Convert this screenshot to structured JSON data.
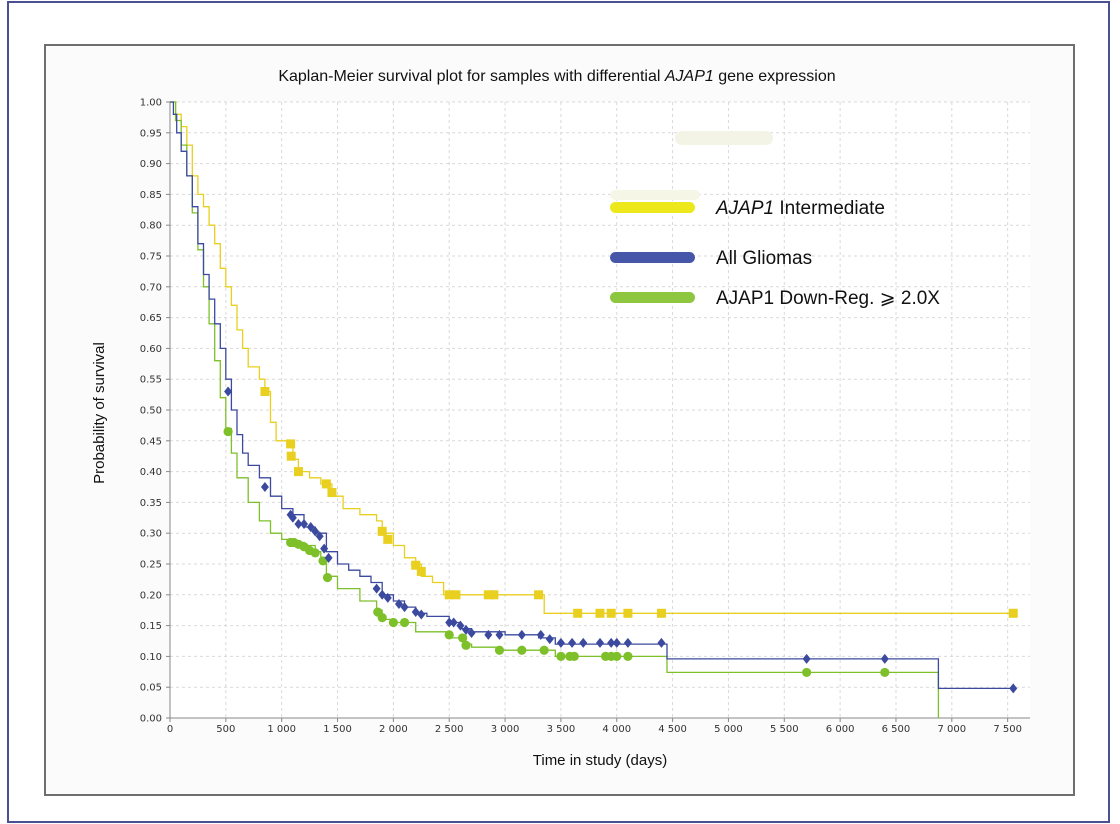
{
  "chart_data": {
    "type": "line",
    "title": {
      "prefix": "Kaplan-Meier survival plot for samples with differential ",
      "gene": "AJAP1",
      "suffix": " gene expression"
    },
    "xlabel": "Time in study (days)",
    "ylabel": "Probability of survival",
    "xlim": [
      0,
      7700
    ],
    "ylim": [
      0,
      1.0
    ],
    "x_ticks": [
      0,
      500,
      1000,
      1500,
      2000,
      2500,
      3000,
      3500,
      4000,
      4500,
      5000,
      5500,
      6000,
      6500,
      7000,
      7500
    ],
    "x_tick_labels": [
      "0",
      "500",
      "1 000",
      "1 500",
      "2 000",
      "2 500",
      "3 000",
      "3 500",
      "4 000",
      "4 500",
      "5 000",
      "5 500",
      "6 000",
      "6 500",
      "7 000",
      "7 500"
    ],
    "y_ticks": [
      0,
      0.05,
      0.1,
      0.15,
      0.2,
      0.25,
      0.3,
      0.35,
      0.4,
      0.45,
      0.5,
      0.55,
      0.6,
      0.65,
      0.7,
      0.75,
      0.8,
      0.85,
      0.9,
      0.95,
      1.0
    ],
    "y_tick_labels": [
      "0.00",
      "0.05",
      "0.10",
      "0.15",
      "0.20",
      "0.25",
      "0.30",
      "0.35",
      "0.40",
      "0.45",
      "0.50",
      "0.55",
      "0.60",
      "0.65",
      "0.70",
      "0.75",
      "0.80",
      "0.85",
      "0.90",
      "0.95",
      "1.00"
    ],
    "grid": true,
    "legend_position": "top-right",
    "series": [
      {
        "name": "AJAP1 Intermediate",
        "legend_label": {
          "italic": "AJAP1",
          "rest": " Intermediate"
        },
        "color": "#e9cf1f",
        "legend_color": "#ece81c",
        "marker": "square",
        "points": [
          [
            0,
            1.0
          ],
          [
            50,
            0.98
          ],
          [
            100,
            0.96
          ],
          [
            150,
            0.93
          ],
          [
            200,
            0.88
          ],
          [
            250,
            0.85
          ],
          [
            300,
            0.83
          ],
          [
            350,
            0.8
          ],
          [
            400,
            0.77
          ],
          [
            450,
            0.73
          ],
          [
            500,
            0.7
          ],
          [
            550,
            0.67
          ],
          [
            600,
            0.63
          ],
          [
            650,
            0.6
          ],
          [
            700,
            0.57
          ],
          [
            800,
            0.55
          ],
          [
            850,
            0.53
          ],
          [
            900,
            0.48
          ],
          [
            950,
            0.45
          ],
          [
            1050,
            0.44
          ],
          [
            1100,
            0.42
          ],
          [
            1150,
            0.4
          ],
          [
            1250,
            0.39
          ],
          [
            1350,
            0.38
          ],
          [
            1450,
            0.36
          ],
          [
            1550,
            0.34
          ],
          [
            1700,
            0.33
          ],
          [
            1850,
            0.32
          ],
          [
            1900,
            0.3
          ],
          [
            2000,
            0.28
          ],
          [
            2100,
            0.26
          ],
          [
            2200,
            0.25
          ],
          [
            2250,
            0.23
          ],
          [
            2350,
            0.22
          ],
          [
            2450,
            0.2
          ],
          [
            2650,
            0.2
          ],
          [
            3350,
            0.2
          ],
          [
            3350,
            0.17
          ],
          [
            7550,
            0.17
          ]
        ],
        "censored": [
          [
            850,
            0.53
          ],
          [
            1080,
            0.445
          ],
          [
            1085,
            0.425
          ],
          [
            1150,
            0.4
          ],
          [
            1400,
            0.38
          ],
          [
            1450,
            0.366
          ],
          [
            1900,
            0.303
          ],
          [
            1950,
            0.29
          ],
          [
            2200,
            0.248
          ],
          [
            2250,
            0.238
          ],
          [
            2500,
            0.2
          ],
          [
            2560,
            0.2
          ],
          [
            2850,
            0.2
          ],
          [
            2900,
            0.2
          ],
          [
            3300,
            0.2
          ],
          [
            3650,
            0.17
          ],
          [
            3850,
            0.17
          ],
          [
            3950,
            0.17
          ],
          [
            4100,
            0.17
          ],
          [
            4400,
            0.17
          ],
          [
            7550,
            0.17
          ]
        ]
      },
      {
        "name": "All Gliomas",
        "legend_label": {
          "italic": "",
          "rest": "All Gliomas"
        },
        "color": "#3b4a9e",
        "legend_color": "#4656a8",
        "marker": "diamond",
        "points": [
          [
            0,
            1.0
          ],
          [
            30,
            0.98
          ],
          [
            60,
            0.95
          ],
          [
            100,
            0.92
          ],
          [
            150,
            0.88
          ],
          [
            200,
            0.83
          ],
          [
            250,
            0.77
          ],
          [
            300,
            0.72
          ],
          [
            350,
            0.68
          ],
          [
            400,
            0.64
          ],
          [
            450,
            0.6
          ],
          [
            500,
            0.55
          ],
          [
            550,
            0.5
          ],
          [
            600,
            0.46
          ],
          [
            650,
            0.43
          ],
          [
            700,
            0.41
          ],
          [
            800,
            0.39
          ],
          [
            900,
            0.36
          ],
          [
            1000,
            0.34
          ],
          [
            1100,
            0.33
          ],
          [
            1200,
            0.31
          ],
          [
            1300,
            0.3
          ],
          [
            1400,
            0.27
          ],
          [
            1500,
            0.25
          ],
          [
            1600,
            0.24
          ],
          [
            1700,
            0.23
          ],
          [
            1800,
            0.22
          ],
          [
            1900,
            0.2
          ],
          [
            2000,
            0.19
          ],
          [
            2100,
            0.18
          ],
          [
            2200,
            0.17
          ],
          [
            2300,
            0.165
          ],
          [
            2500,
            0.155
          ],
          [
            2600,
            0.145
          ],
          [
            2700,
            0.14
          ],
          [
            3000,
            0.135
          ],
          [
            3300,
            0.13
          ],
          [
            3450,
            0.12
          ],
          [
            4450,
            0.12
          ],
          [
            4450,
            0.096
          ],
          [
            6880,
            0.096
          ],
          [
            6880,
            0.048
          ],
          [
            7550,
            0.048
          ]
        ],
        "censored": [
          [
            520,
            0.53
          ],
          [
            850,
            0.375
          ],
          [
            1080,
            0.33
          ],
          [
            1100,
            0.325
          ],
          [
            1150,
            0.315
          ],
          [
            1200,
            0.315
          ],
          [
            1260,
            0.31
          ],
          [
            1300,
            0.303
          ],
          [
            1340,
            0.295
          ],
          [
            1380,
            0.275
          ],
          [
            1420,
            0.26
          ],
          [
            1850,
            0.21
          ],
          [
            1900,
            0.2
          ],
          [
            1950,
            0.195
          ],
          [
            2050,
            0.185
          ],
          [
            2100,
            0.18
          ],
          [
            2200,
            0.172
          ],
          [
            2250,
            0.168
          ],
          [
            2500,
            0.155
          ],
          [
            2540,
            0.155
          ],
          [
            2600,
            0.15
          ],
          [
            2650,
            0.143
          ],
          [
            2700,
            0.138
          ],
          [
            2850,
            0.135
          ],
          [
            2950,
            0.135
          ],
          [
            3150,
            0.135
          ],
          [
            3320,
            0.135
          ],
          [
            3400,
            0.128
          ],
          [
            3500,
            0.122
          ],
          [
            3600,
            0.122
          ],
          [
            3700,
            0.122
          ],
          [
            3850,
            0.122
          ],
          [
            3950,
            0.122
          ],
          [
            4000,
            0.122
          ],
          [
            4100,
            0.122
          ],
          [
            4400,
            0.122
          ],
          [
            5700,
            0.096
          ],
          [
            6400,
            0.096
          ],
          [
            7550,
            0.048
          ]
        ]
      },
      {
        "name": "AJAP1 Down-Reg. ⩾ 2.0X",
        "legend_label": {
          "italic": "",
          "rest": "AJAP1 Down-Reg. ⩾ 2.0X"
        },
        "color": "#7dc02a",
        "legend_color": "#8dc63f",
        "marker": "circle",
        "points": [
          [
            0,
            1.0
          ],
          [
            50,
            0.97
          ],
          [
            100,
            0.93
          ],
          [
            150,
            0.88
          ],
          [
            200,
            0.82
          ],
          [
            250,
            0.76
          ],
          [
            300,
            0.7
          ],
          [
            350,
            0.64
          ],
          [
            400,
            0.58
          ],
          [
            450,
            0.52
          ],
          [
            500,
            0.47
          ],
          [
            550,
            0.43
          ],
          [
            600,
            0.39
          ],
          [
            700,
            0.35
          ],
          [
            800,
            0.32
          ],
          [
            900,
            0.3
          ],
          [
            1000,
            0.29
          ],
          [
            1100,
            0.285
          ],
          [
            1200,
            0.28
          ],
          [
            1300,
            0.27
          ],
          [
            1350,
            0.25
          ],
          [
            1400,
            0.23
          ],
          [
            1500,
            0.21
          ],
          [
            1700,
            0.19
          ],
          [
            1850,
            0.175
          ],
          [
            1900,
            0.16
          ],
          [
            2000,
            0.155
          ],
          [
            2200,
            0.14
          ],
          [
            2500,
            0.13
          ],
          [
            2650,
            0.12
          ],
          [
            2700,
            0.115
          ],
          [
            2950,
            0.11
          ],
          [
            3300,
            0.11
          ],
          [
            3450,
            0.1
          ],
          [
            4450,
            0.1
          ],
          [
            4450,
            0.074
          ],
          [
            6880,
            0.074
          ],
          [
            6880,
            0.0
          ]
        ],
        "censored": [
          [
            520,
            0.465
          ],
          [
            1080,
            0.285
          ],
          [
            1110,
            0.285
          ],
          [
            1150,
            0.282
          ],
          [
            1200,
            0.278
          ],
          [
            1250,
            0.272
          ],
          [
            1300,
            0.268
          ],
          [
            1370,
            0.255
          ],
          [
            1410,
            0.228
          ],
          [
            1860,
            0.172
          ],
          [
            1900,
            0.163
          ],
          [
            2000,
            0.155
          ],
          [
            2100,
            0.155
          ],
          [
            2500,
            0.135
          ],
          [
            2620,
            0.13
          ],
          [
            2650,
            0.118
          ],
          [
            2950,
            0.11
          ],
          [
            3150,
            0.11
          ],
          [
            3350,
            0.11
          ],
          [
            3500,
            0.1
          ],
          [
            3580,
            0.1
          ],
          [
            3620,
            0.1
          ],
          [
            3900,
            0.1
          ],
          [
            3950,
            0.1
          ],
          [
            4000,
            0.1
          ],
          [
            4100,
            0.1
          ],
          [
            5700,
            0.074
          ],
          [
            6400,
            0.074
          ]
        ]
      }
    ]
  }
}
